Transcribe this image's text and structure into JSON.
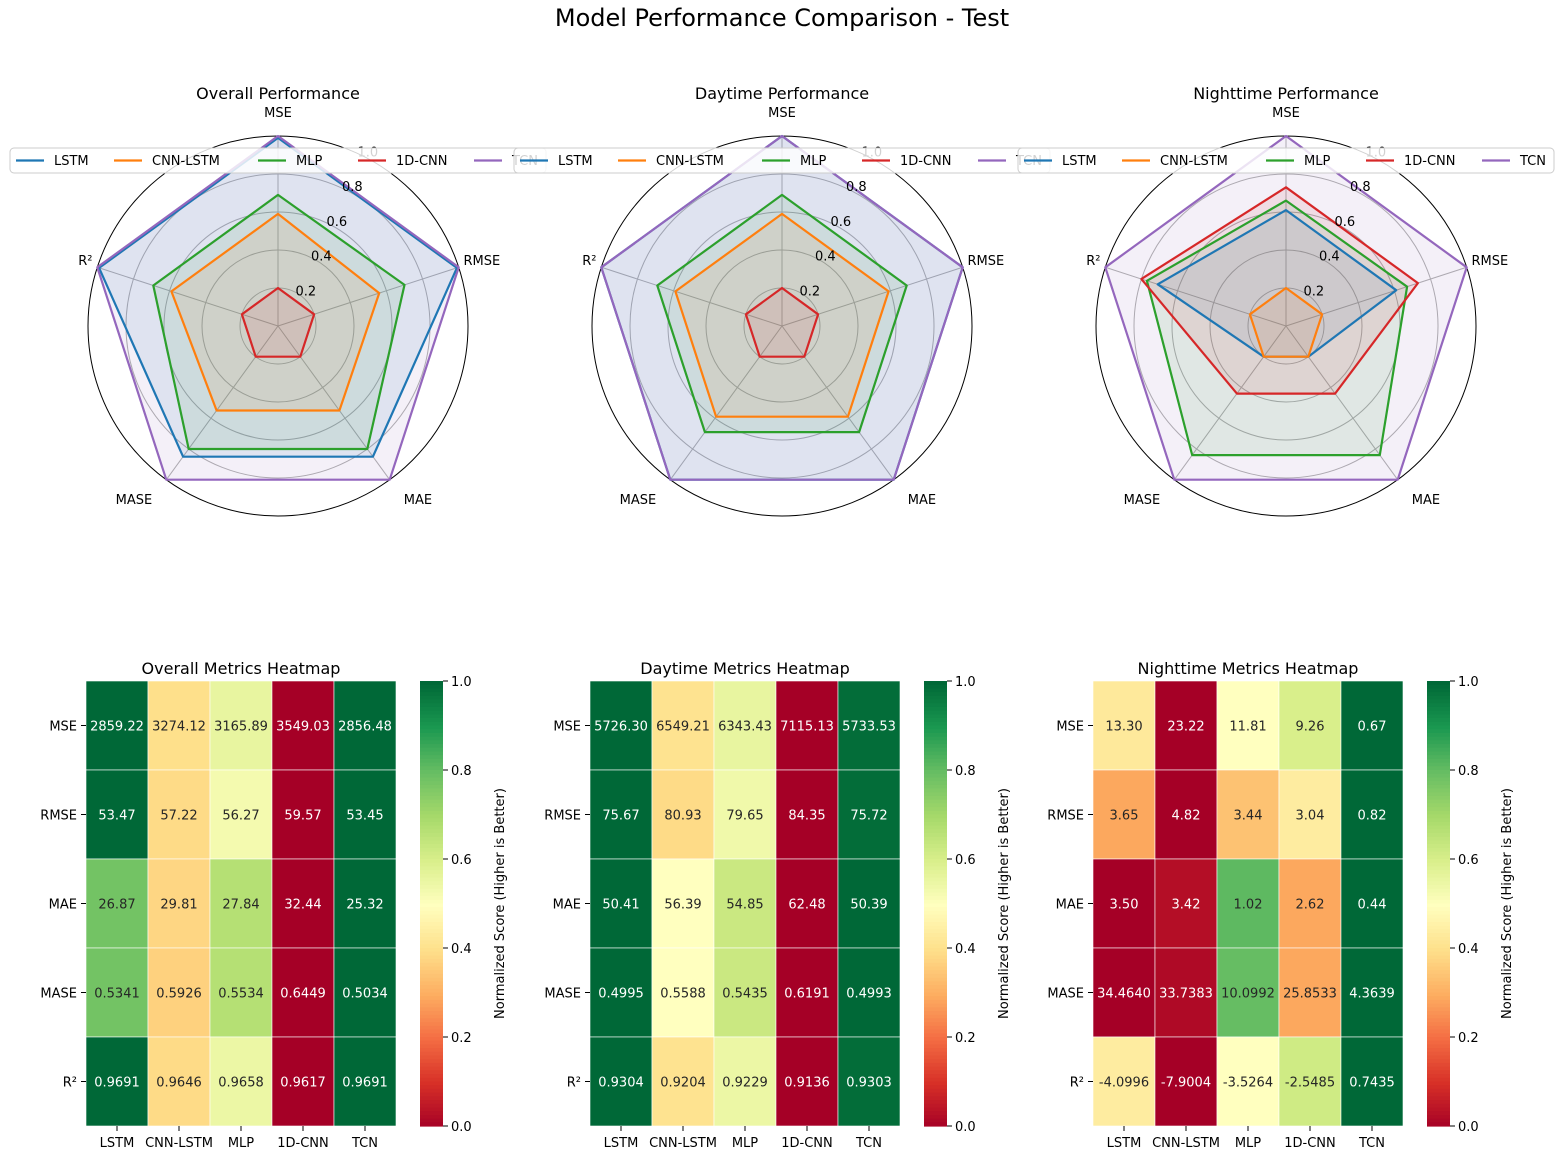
{
  "figure": {
    "title": "Model Performance Comparison - Test"
  },
  "models": [
    "LSTM",
    "CNN-LSTM",
    "MLP",
    "1D-CNN",
    "TCN"
  ],
  "metrics": [
    "MSE",
    "RMSE",
    "MAE",
    "MASE",
    "R²"
  ],
  "colors": {
    "LSTM": "#1f77b4",
    "CNN-LSTM": "#ff7f0e",
    "MLP": "#2ca02c",
    "1D-CNN": "#d62728",
    "TCN": "#9467bd"
  },
  "chart_data": [
    {
      "type": "radar",
      "title": "Overall Performance",
      "axes": [
        "MSE",
        "RMSE",
        "MAE",
        "MASE",
        "R²"
      ],
      "rlim": [
        0,
        1.0
      ],
      "rticks": [
        "0.2",
        "0.4",
        "0.6",
        "0.8",
        "1.0"
      ],
      "legend": "top",
      "series": [
        {
          "name": "LSTM",
          "values": [
            0.99,
            0.99,
            0.85,
            0.85,
            0.99
          ]
        },
        {
          "name": "CNN-LSTM",
          "values": [
            0.59,
            0.56,
            0.55,
            0.55,
            0.59
          ]
        },
        {
          "name": "MLP",
          "values": [
            0.69,
            0.7,
            0.8,
            0.8,
            0.69
          ]
        },
        {
          "name": "1D-CNN",
          "values": [
            0.2,
            0.2,
            0.2,
            0.2,
            0.2
          ]
        },
        {
          "name": "TCN",
          "values": [
            1.0,
            1.0,
            1.0,
            1.0,
            1.0
          ]
        }
      ]
    },
    {
      "type": "radar",
      "title": "Daytime Performance",
      "axes": [
        "MSE",
        "RMSE",
        "MAE",
        "MASE",
        "R²"
      ],
      "rlim": [
        0,
        1.0
      ],
      "rticks": [
        "0.2",
        "0.4",
        "0.6",
        "0.8",
        "1.0"
      ],
      "legend": "top",
      "series": [
        {
          "name": "LSTM",
          "values": [
            1.0,
            1.0,
            1.0,
            1.0,
            1.0
          ]
        },
        {
          "name": "CNN-LSTM",
          "values": [
            0.59,
            0.59,
            0.59,
            0.59,
            0.59
          ]
        },
        {
          "name": "MLP",
          "values": [
            0.69,
            0.69,
            0.69,
            0.69,
            0.69
          ]
        },
        {
          "name": "1D-CNN",
          "values": [
            0.2,
            0.2,
            0.2,
            0.2,
            0.2
          ]
        },
        {
          "name": "TCN",
          "values": [
            1.0,
            1.0,
            1.0,
            1.0,
            1.0
          ]
        }
      ]
    },
    {
      "type": "radar",
      "title": "Nighttime Performance",
      "axes": [
        "MSE",
        "RMSE",
        "MAE",
        "MASE",
        "R²"
      ],
      "rlim": [
        0,
        1.0
      ],
      "rticks": [
        "0.2",
        "0.4",
        "0.6",
        "0.8",
        "1.0"
      ],
      "legend": "top",
      "series": [
        {
          "name": "LSTM",
          "values": [
            0.61,
            0.61,
            0.2,
            0.2,
            0.71
          ]
        },
        {
          "name": "CNN-LSTM",
          "values": [
            0.2,
            0.2,
            0.2,
            0.2,
            0.2
          ]
        },
        {
          "name": "MLP",
          "values": [
            0.66,
            0.67,
            0.84,
            0.84,
            0.77
          ]
        },
        {
          "name": "1D-CNN",
          "values": [
            0.73,
            0.73,
            0.44,
            0.44,
            0.8
          ]
        },
        {
          "name": "TCN",
          "values": [
            1.0,
            1.0,
            1.0,
            1.0,
            1.0
          ]
        }
      ]
    },
    {
      "type": "heatmap",
      "title": "Overall Metrics Heatmap",
      "x": [
        "LSTM",
        "CNN-LSTM",
        "MLP",
        "1D-CNN",
        "TCN"
      ],
      "y": [
        "MSE",
        "RMSE",
        "MAE",
        "MASE",
        "R²"
      ],
      "labels": [
        [
          "2859.22",
          "3274.12",
          "3165.89",
          "3549.03",
          "2856.48"
        ],
        [
          "53.47",
          "57.22",
          "56.27",
          "59.57",
          "53.45"
        ],
        [
          "26.87",
          "29.81",
          "27.84",
          "32.44",
          "25.32"
        ],
        [
          "0.5341",
          "0.5926",
          "0.5534",
          "0.6449",
          "0.5034"
        ],
        [
          "0.9691",
          "0.9646",
          "0.9658",
          "0.9617",
          "0.9691"
        ]
      ],
      "scores": [
        [
          1.0,
          0.4,
          0.56,
          0.0,
          1.0
        ],
        [
          1.0,
          0.39,
          0.53,
          0.0,
          1.0
        ],
        [
          0.78,
          0.38,
          0.67,
          0.0,
          1.0
        ],
        [
          0.78,
          0.37,
          0.67,
          0.0,
          1.0
        ],
        [
          1.0,
          0.39,
          0.55,
          0.0,
          1.0
        ]
      ],
      "colorbar": {
        "label": "Normalized Score (Higher is Better)",
        "ticks": [
          "0.0",
          "0.2",
          "0.4",
          "0.6",
          "0.8",
          "1.0"
        ]
      }
    },
    {
      "type": "heatmap",
      "title": "Daytime Metrics Heatmap",
      "x": [
        "LSTM",
        "CNN-LSTM",
        "MLP",
        "1D-CNN",
        "TCN"
      ],
      "y": [
        "MSE",
        "RMSE",
        "MAE",
        "MASE",
        "R²"
      ],
      "labels": [
        [
          "5726.30",
          "6549.21",
          "6343.43",
          "7115.13",
          "5733.53"
        ],
        [
          "75.67",
          "80.93",
          "79.65",
          "84.35",
          "75.72"
        ],
        [
          "50.41",
          "56.39",
          "54.85",
          "62.48",
          "50.39"
        ],
        [
          "0.4995",
          "0.5588",
          "0.5435",
          "0.6191",
          "0.4993"
        ],
        [
          "0.9304",
          "0.9204",
          "0.9229",
          "0.9136",
          "0.9303"
        ]
      ],
      "scores": [
        [
          1.0,
          0.41,
          0.56,
          0.0,
          0.99
        ],
        [
          1.0,
          0.39,
          0.54,
          0.0,
          0.99
        ],
        [
          1.0,
          0.5,
          0.63,
          0.0,
          1.0
        ],
        [
          1.0,
          0.5,
          0.63,
          0.0,
          1.0
        ],
        [
          1.0,
          0.41,
          0.55,
          0.0,
          0.99
        ]
      ],
      "colorbar": {
        "label": "Normalized Score (Higher is Better)",
        "ticks": [
          "0.0",
          "0.2",
          "0.4",
          "0.6",
          "0.8",
          "1.0"
        ]
      }
    },
    {
      "type": "heatmap",
      "title": "Nighttime Metrics Heatmap",
      "x": [
        "LSTM",
        "CNN-LSTM",
        "MLP",
        "1D-CNN",
        "TCN"
      ],
      "y": [
        "MSE",
        "RMSE",
        "MAE",
        "MASE",
        "R²"
      ],
      "labels": [
        [
          "13.30",
          "23.22",
          "11.81",
          "9.26",
          "0.67"
        ],
        [
          "3.65",
          "4.82",
          "3.44",
          "3.04",
          "0.82"
        ],
        [
          "3.50",
          "3.42",
          "1.02",
          "2.62",
          "0.44"
        ],
        [
          "34.4640",
          "33.7383",
          "10.0992",
          "25.8533",
          "4.3639"
        ],
        [
          "-4.0996",
          "-7.9004",
          "-3.5264",
          "-2.5485",
          "0.7435"
        ]
      ],
      "scores": [
        [
          0.43,
          0.0,
          0.5,
          0.6,
          1.0
        ],
        [
          0.29,
          0.0,
          0.34,
          0.44,
          1.0
        ],
        [
          0.0,
          0.03,
          0.81,
          0.29,
          1.0
        ],
        [
          0.0,
          0.02,
          0.8,
          0.29,
          1.0
        ],
        [
          0.44,
          0.0,
          0.5,
          0.62,
          1.0
        ]
      ],
      "colorbar": {
        "label": "Normalized Score (Higher is Better)",
        "ticks": [
          "0.0",
          "0.2",
          "0.4",
          "0.6",
          "0.8",
          "1.0"
        ]
      }
    }
  ]
}
